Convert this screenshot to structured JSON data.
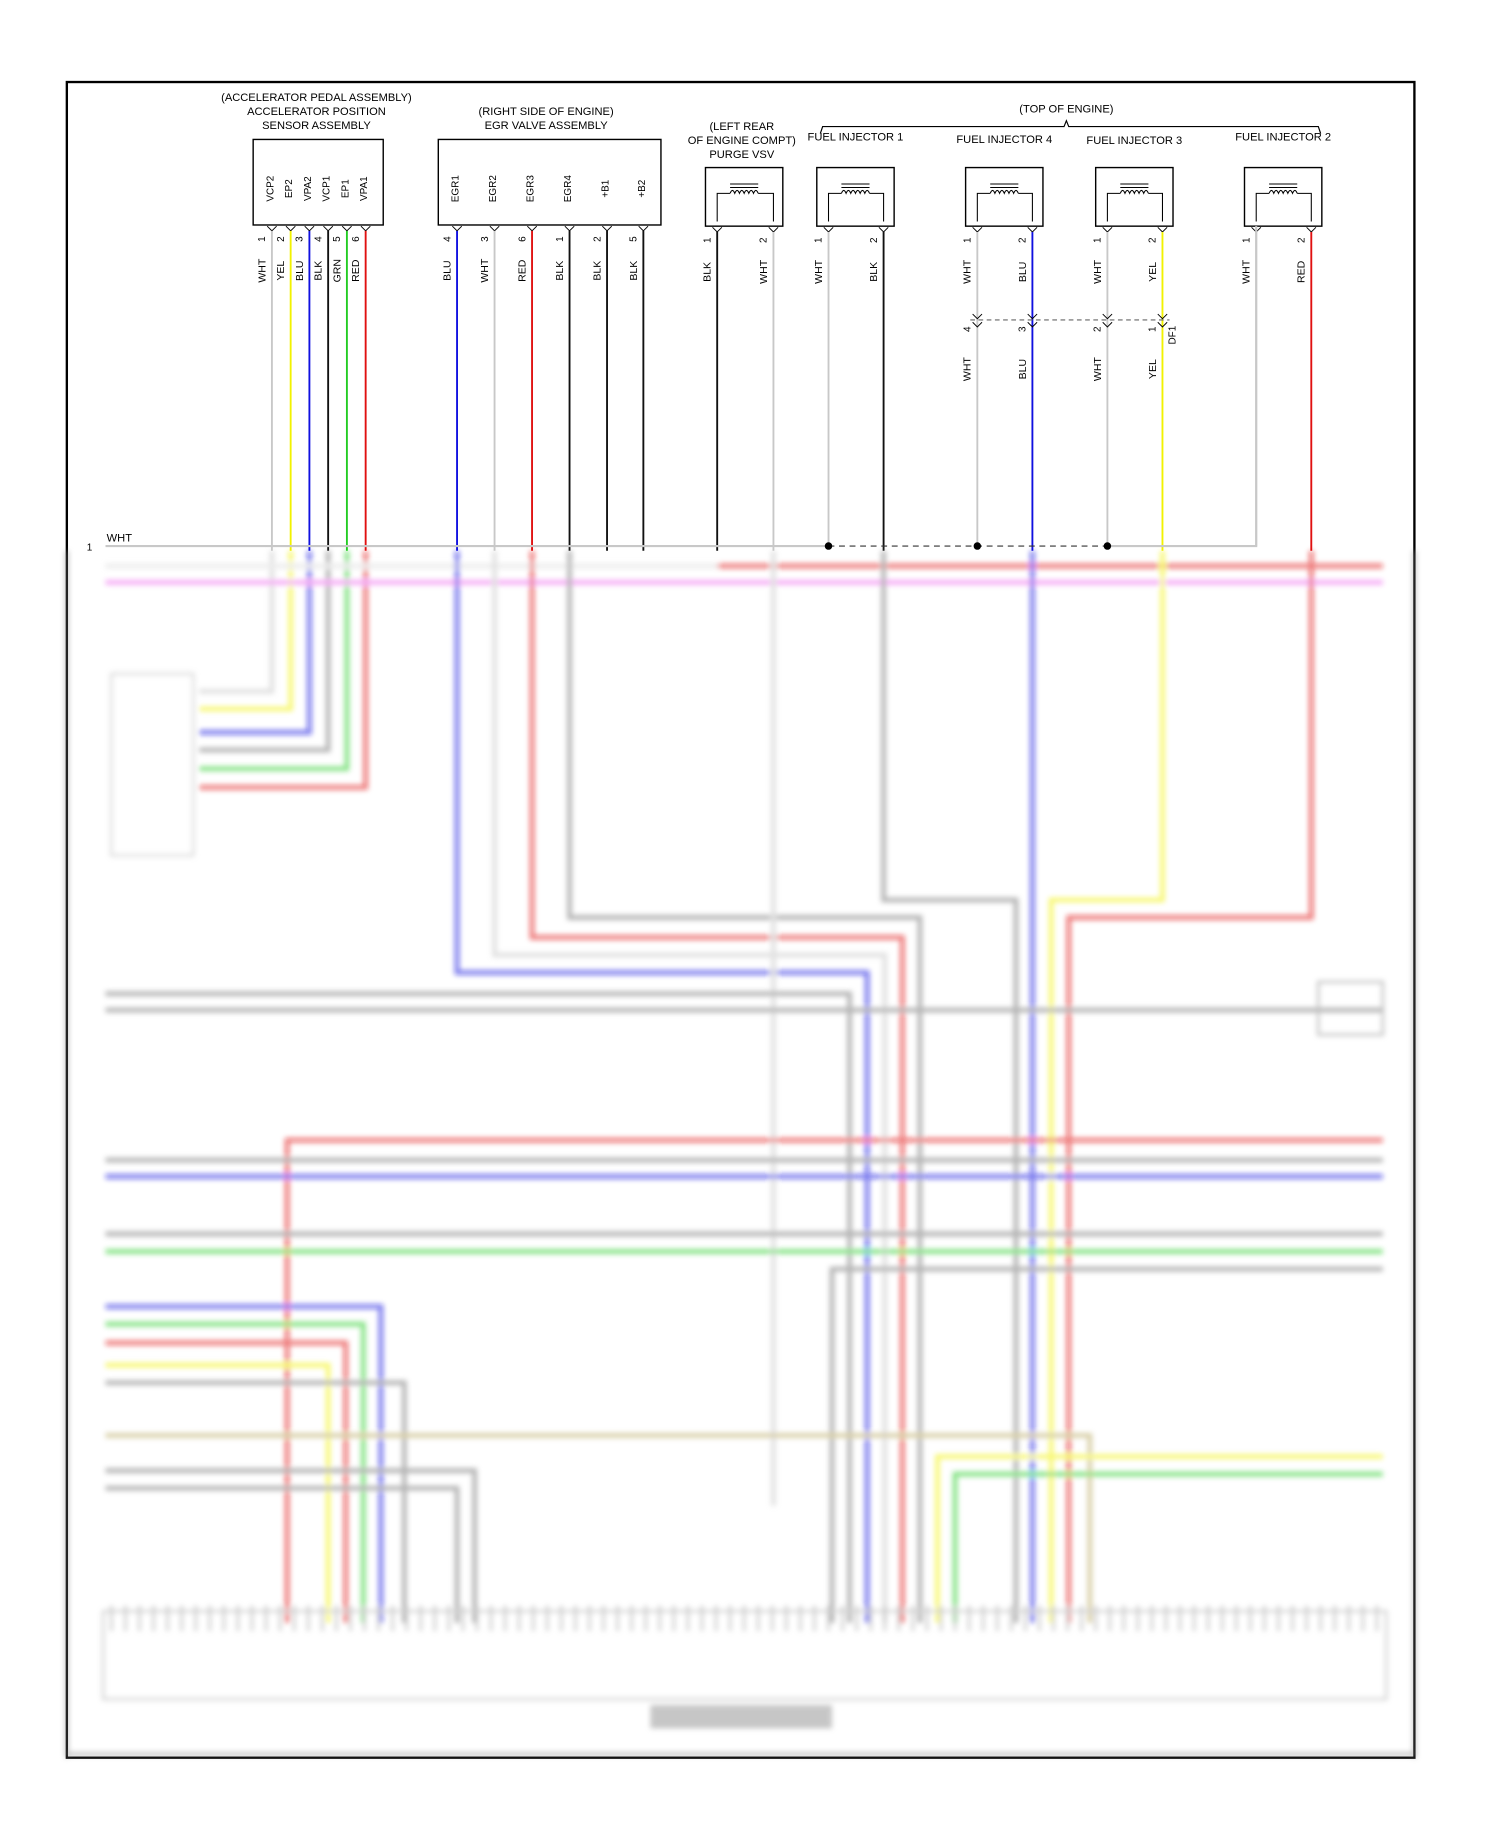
{
  "wire_colors": {
    "WHT": "#c8c8c8",
    "YEL": "#f2f200",
    "BLU": "#1010e0",
    "BLK": "#111111",
    "GRN": "#22cc22",
    "RED": "#e01010"
  },
  "components": [
    {
      "id": "accel",
      "title": [
        "(ACCELERATOR PEDAL ASSEMBLY)",
        "ACCELERATOR POSITION",
        "SENSOR ASSEMBLY"
      ],
      "pins": [
        {
          "name": "VCP2",
          "num": "1",
          "color": "WHT"
        },
        {
          "name": "EP2",
          "num": "2",
          "color": "YEL"
        },
        {
          "name": "VPA2",
          "num": "3",
          "color": "BLU"
        },
        {
          "name": "VCP1",
          "num": "4",
          "color": "BLK"
        },
        {
          "name": "EP1",
          "num": "5",
          "color": "GRN"
        },
        {
          "name": "VPA1",
          "num": "6",
          "color": "RED"
        }
      ]
    },
    {
      "id": "egr",
      "title": [
        "(RIGHT SIDE OF ENGINE)",
        "EGR VALVE ASSEMBLY"
      ],
      "pins": [
        {
          "name": "EGR1",
          "num": "4",
          "color": "BLU"
        },
        {
          "name": "EGR2",
          "num": "3",
          "color": "WHT"
        },
        {
          "name": "EGR3",
          "num": "6",
          "color": "RED"
        },
        {
          "name": "EGR4",
          "num": "1",
          "color": "BLK"
        },
        {
          "name": "+B1",
          "num": "2",
          "color": "BLK"
        },
        {
          "name": "+B2",
          "num": "5",
          "color": "BLK"
        }
      ]
    },
    {
      "id": "purge",
      "title": [
        "(LEFT REAR",
        "OF ENGINE COMPT)",
        "PURGE VSV"
      ],
      "pins": [
        {
          "num": "1",
          "color": "BLK"
        },
        {
          "num": "2",
          "color": "WHT"
        }
      ]
    },
    {
      "id": "inj1",
      "title": [
        "FUEL INJECTOR 1"
      ],
      "pins": [
        {
          "num": "1",
          "color": "WHT"
        },
        {
          "num": "2",
          "color": "BLK"
        }
      ]
    },
    {
      "id": "inj4",
      "title": [
        "FUEL INJECTOR 4"
      ],
      "pins": [
        {
          "num": "1",
          "color": "WHT"
        },
        {
          "num": "2",
          "color": "BLU"
        }
      ]
    },
    {
      "id": "inj3",
      "title": [
        "FUEL INJECTOR 3"
      ],
      "pins": [
        {
          "num": "1",
          "color": "WHT"
        },
        {
          "num": "2",
          "color": "YEL"
        }
      ]
    },
    {
      "id": "inj2",
      "title": [
        "FUEL INJECTOR 2"
      ],
      "pins": [
        {
          "num": "1",
          "color": "WHT"
        },
        {
          "num": "2",
          "color": "RED"
        }
      ]
    }
  ],
  "top_of_engine_label": "(TOP OF ENGINE)",
  "df1": {
    "name": "DF1",
    "pins": [
      {
        "num": "4",
        "color": "WHT"
      },
      {
        "num": "3",
        "color": "BLU"
      },
      {
        "num": "2",
        "color": "WHT"
      },
      {
        "num": "1",
        "color": "YEL"
      }
    ]
  },
  "bus": {
    "num": "1",
    "color_label": "WHT"
  }
}
